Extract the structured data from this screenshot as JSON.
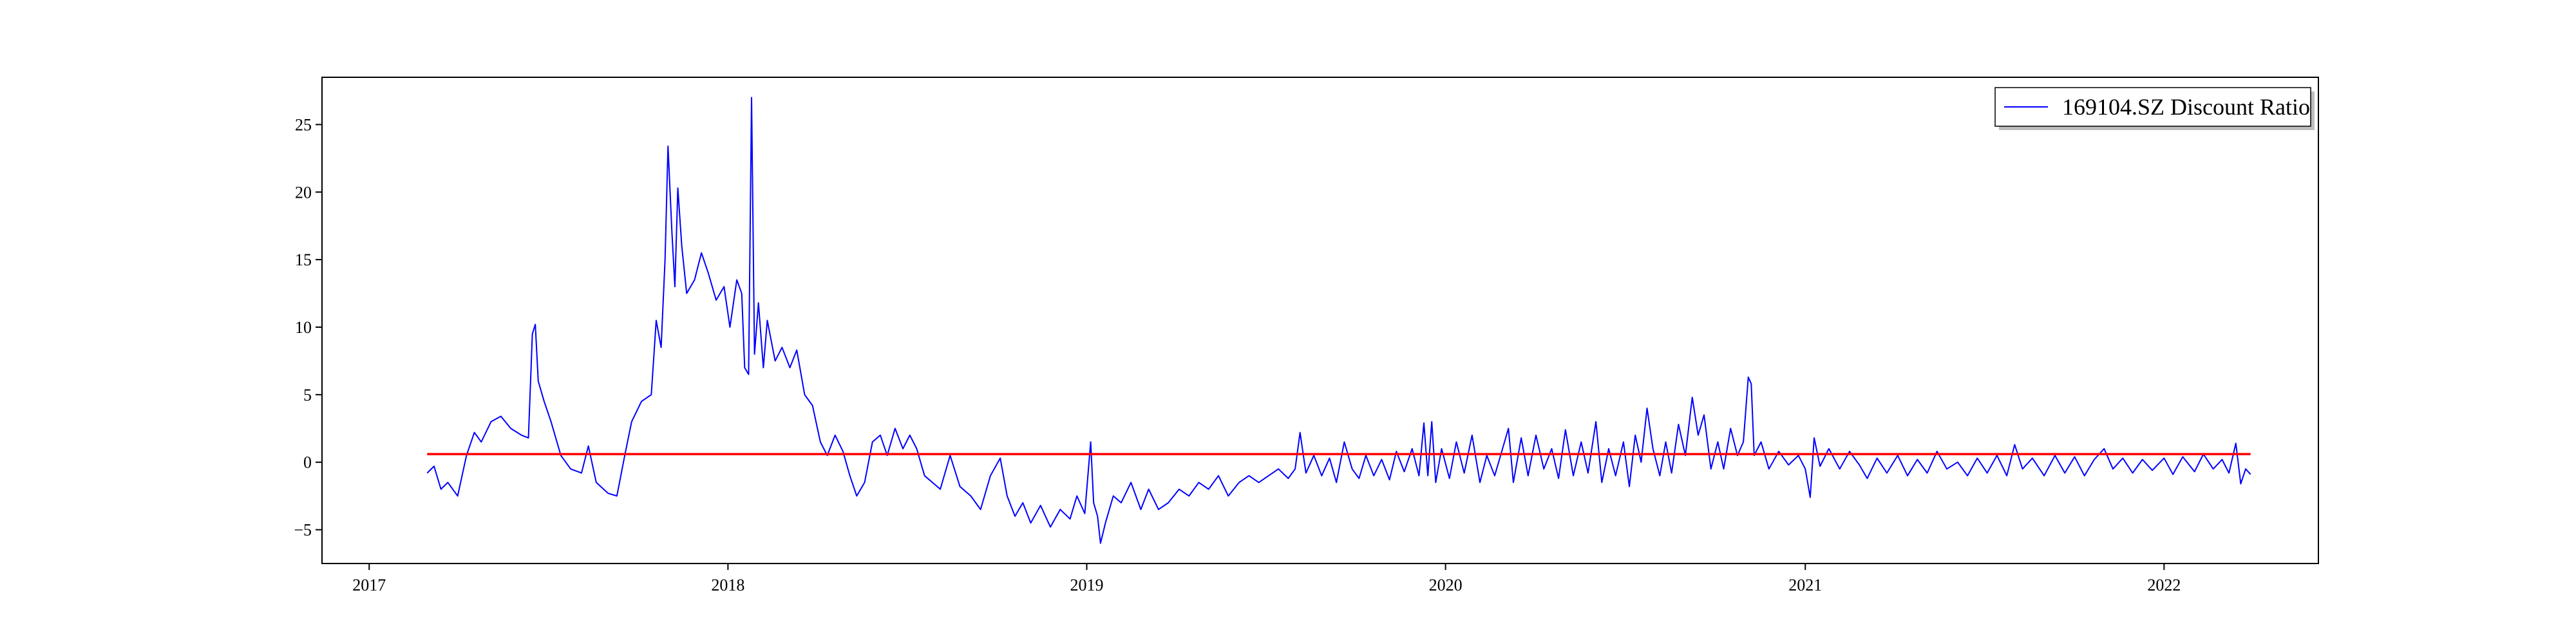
{
  "chart_data": {
    "type": "line",
    "title": "",
    "xlabel": "",
    "ylabel": "",
    "x_tick_labels": [
      "2017",
      "2018",
      "2019",
      "2020",
      "2021",
      "2022"
    ],
    "x_ticks": [
      "2017-01-01",
      "2018-01-01",
      "2019-01-01",
      "2020-01-01",
      "2021-01-01",
      "2022-01-01"
    ],
    "y_tick_labels": [
      "−5",
      "0",
      "5",
      "10",
      "15",
      "20",
      "25"
    ],
    "y_ticks": [
      -5,
      0,
      5,
      10,
      15,
      20,
      25
    ],
    "xlim": [
      "2016-11-14",
      "2022-06-07"
    ],
    "ylim": [
      -7.5,
      28.5
    ],
    "grid": false,
    "legend_position": "top-right",
    "series": [
      {
        "name": "169104.SZ Discount Ratio",
        "color": "#0000ff",
        "points": [
          [
            "2017-03-01",
            -0.8
          ],
          [
            "2017-03-08",
            -0.3
          ],
          [
            "2017-03-15",
            -2.0
          ],
          [
            "2017-03-22",
            -1.5
          ],
          [
            "2017-04-01",
            -2.5
          ],
          [
            "2017-04-10",
            0.5
          ],
          [
            "2017-04-18",
            2.2
          ],
          [
            "2017-04-25",
            1.5
          ],
          [
            "2017-05-05",
            3.0
          ],
          [
            "2017-05-15",
            3.4
          ],
          [
            "2017-05-25",
            2.5
          ],
          [
            "2017-06-05",
            2.0
          ],
          [
            "2017-06-12",
            1.8
          ],
          [
            "2017-06-16",
            9.5
          ],
          [
            "2017-06-19",
            10.2
          ],
          [
            "2017-06-22",
            6.0
          ],
          [
            "2017-06-28",
            4.5
          ],
          [
            "2017-07-05",
            3.0
          ],
          [
            "2017-07-15",
            0.5
          ],
          [
            "2017-07-25",
            -0.5
          ],
          [
            "2017-08-05",
            -0.8
          ],
          [
            "2017-08-12",
            1.2
          ],
          [
            "2017-08-20",
            -1.5
          ],
          [
            "2017-09-01",
            -2.3
          ],
          [
            "2017-09-10",
            -2.5
          ],
          [
            "2017-09-18",
            0.5
          ],
          [
            "2017-09-25",
            3.0
          ],
          [
            "2017-10-05",
            4.5
          ],
          [
            "2017-10-15",
            5.0
          ],
          [
            "2017-10-20",
            10.5
          ],
          [
            "2017-10-25",
            8.5
          ],
          [
            "2017-10-29",
            15.0
          ],
          [
            "2017-11-01",
            23.4
          ],
          [
            "2017-11-05",
            17.0
          ],
          [
            "2017-11-08",
            13.0
          ],
          [
            "2017-11-11",
            20.3
          ],
          [
            "2017-11-15",
            16.0
          ],
          [
            "2017-11-20",
            12.5
          ],
          [
            "2017-11-28",
            13.5
          ],
          [
            "2017-12-05",
            15.5
          ],
          [
            "2017-12-12",
            14.0
          ],
          [
            "2017-12-20",
            12.0
          ],
          [
            "2017-12-28",
            13.0
          ],
          [
            "2018-01-03",
            10.0
          ],
          [
            "2018-01-10",
            13.5
          ],
          [
            "2018-01-15",
            12.5
          ],
          [
            "2018-01-18",
            7.0
          ],
          [
            "2018-01-22",
            6.5
          ],
          [
            "2018-01-25",
            27.0
          ],
          [
            "2018-01-28",
            8.0
          ],
          [
            "2018-02-01",
            11.8
          ],
          [
            "2018-02-06",
            7.0
          ],
          [
            "2018-02-10",
            10.5
          ],
          [
            "2018-02-18",
            7.5
          ],
          [
            "2018-02-25",
            8.5
          ],
          [
            "2018-03-05",
            7.0
          ],
          [
            "2018-03-12",
            8.3
          ],
          [
            "2018-03-20",
            5.0
          ],
          [
            "2018-03-28",
            4.2
          ],
          [
            "2018-04-05",
            1.5
          ],
          [
            "2018-04-12",
            0.5
          ],
          [
            "2018-04-20",
            2.0
          ],
          [
            "2018-04-28",
            0.8
          ],
          [
            "2018-05-05",
            -1.0
          ],
          [
            "2018-05-12",
            -2.5
          ],
          [
            "2018-05-20",
            -1.5
          ],
          [
            "2018-05-28",
            1.5
          ],
          [
            "2018-06-05",
            2.0
          ],
          [
            "2018-06-12",
            0.5
          ],
          [
            "2018-06-20",
            2.5
          ],
          [
            "2018-06-28",
            1.0
          ],
          [
            "2018-07-05",
            2.0
          ],
          [
            "2018-07-12",
            1.0
          ],
          [
            "2018-07-20",
            -1.0
          ],
          [
            "2018-07-28",
            -1.5
          ],
          [
            "2018-08-05",
            -2.0
          ],
          [
            "2018-08-15",
            0.5
          ],
          [
            "2018-08-25",
            -1.8
          ],
          [
            "2018-09-05",
            -2.5
          ],
          [
            "2018-09-15",
            -3.5
          ],
          [
            "2018-09-25",
            -1.0
          ],
          [
            "2018-10-05",
            0.3
          ],
          [
            "2018-10-12",
            -2.5
          ],
          [
            "2018-10-20",
            -4.0
          ],
          [
            "2018-10-28",
            -3.0
          ],
          [
            "2018-11-05",
            -4.5
          ],
          [
            "2018-11-15",
            -3.2
          ],
          [
            "2018-11-25",
            -4.8
          ],
          [
            "2018-12-05",
            -3.5
          ],
          [
            "2018-12-15",
            -4.2
          ],
          [
            "2018-12-22",
            -2.5
          ],
          [
            "2018-12-30",
            -3.8
          ],
          [
            "2019-01-05",
            1.5
          ],
          [
            "2019-01-08",
            -3.0
          ],
          [
            "2019-01-12",
            -4.0
          ],
          [
            "2019-01-15",
            -6.0
          ],
          [
            "2019-01-20",
            -4.5
          ],
          [
            "2019-01-28",
            -2.5
          ],
          [
            "2019-02-05",
            -3.0
          ],
          [
            "2019-02-15",
            -1.5
          ],
          [
            "2019-02-25",
            -3.5
          ],
          [
            "2019-03-05",
            -2.0
          ],
          [
            "2019-03-15",
            -3.5
          ],
          [
            "2019-03-25",
            -3.0
          ],
          [
            "2019-04-05",
            -2.0
          ],
          [
            "2019-04-15",
            -2.5
          ],
          [
            "2019-04-25",
            -1.5
          ],
          [
            "2019-05-05",
            -2.0
          ],
          [
            "2019-05-15",
            -1.0
          ],
          [
            "2019-05-25",
            -2.5
          ],
          [
            "2019-06-05",
            -1.5
          ],
          [
            "2019-06-15",
            -1.0
          ],
          [
            "2019-06-25",
            -1.5
          ],
          [
            "2019-07-05",
            -1.0
          ],
          [
            "2019-07-15",
            -0.5
          ],
          [
            "2019-07-25",
            -1.2
          ],
          [
            "2019-08-01",
            -0.5
          ],
          [
            "2019-08-06",
            2.2
          ],
          [
            "2019-08-12",
            -0.8
          ],
          [
            "2019-08-20",
            0.5
          ],
          [
            "2019-08-28",
            -1.0
          ],
          [
            "2019-09-05",
            0.3
          ],
          [
            "2019-09-12",
            -1.5
          ],
          [
            "2019-09-20",
            1.5
          ],
          [
            "2019-09-28",
            -0.5
          ],
          [
            "2019-10-05",
            -1.2
          ],
          [
            "2019-10-12",
            0.5
          ],
          [
            "2019-10-20",
            -1.0
          ],
          [
            "2019-10-28",
            0.2
          ],
          [
            "2019-11-05",
            -1.3
          ],
          [
            "2019-11-12",
            0.8
          ],
          [
            "2019-11-20",
            -0.7
          ],
          [
            "2019-11-28",
            1.0
          ],
          [
            "2019-12-05",
            -1.0
          ],
          [
            "2019-12-10",
            2.9
          ],
          [
            "2019-12-14",
            -1.0
          ],
          [
            "2019-12-18",
            3.0
          ],
          [
            "2019-12-22",
            -1.5
          ],
          [
            "2019-12-28",
            1.0
          ],
          [
            "2020-01-05",
            -1.2
          ],
          [
            "2020-01-12",
            1.5
          ],
          [
            "2020-01-20",
            -0.8
          ],
          [
            "2020-01-28",
            2.0
          ],
          [
            "2020-02-05",
            -1.5
          ],
          [
            "2020-02-12",
            0.5
          ],
          [
            "2020-02-20",
            -1.0
          ],
          [
            "2020-02-28",
            1.0
          ],
          [
            "2020-03-05",
            2.5
          ],
          [
            "2020-03-10",
            -1.5
          ],
          [
            "2020-03-18",
            1.8
          ],
          [
            "2020-03-25",
            -1.0
          ],
          [
            "2020-04-02",
            2.0
          ],
          [
            "2020-04-10",
            -0.5
          ],
          [
            "2020-04-18",
            1.0
          ],
          [
            "2020-04-25",
            -1.2
          ],
          [
            "2020-05-02",
            2.4
          ],
          [
            "2020-05-10",
            -1.0
          ],
          [
            "2020-05-18",
            1.5
          ],
          [
            "2020-05-25",
            -0.8
          ],
          [
            "2020-06-02",
            3.0
          ],
          [
            "2020-06-08",
            -1.5
          ],
          [
            "2020-06-15",
            1.0
          ],
          [
            "2020-06-22",
            -1.0
          ],
          [
            "2020-06-30",
            1.5
          ],
          [
            "2020-07-06",
            -1.8
          ],
          [
            "2020-07-12",
            2.0
          ],
          [
            "2020-07-18",
            0.0
          ],
          [
            "2020-07-24",
            4.0
          ],
          [
            "2020-07-30",
            1.0
          ],
          [
            "2020-08-06",
            -1.0
          ],
          [
            "2020-08-12",
            1.5
          ],
          [
            "2020-08-18",
            -0.8
          ],
          [
            "2020-08-25",
            2.8
          ],
          [
            "2020-09-01",
            0.5
          ],
          [
            "2020-09-08",
            4.8
          ],
          [
            "2020-09-14",
            2.0
          ],
          [
            "2020-09-20",
            3.5
          ],
          [
            "2020-09-27",
            -0.5
          ],
          [
            "2020-10-04",
            1.5
          ],
          [
            "2020-10-10",
            -0.5
          ],
          [
            "2020-10-17",
            2.5
          ],
          [
            "2020-10-24",
            0.5
          ],
          [
            "2020-10-30",
            1.5
          ],
          [
            "2020-11-04",
            6.3
          ],
          [
            "2020-11-07",
            5.8
          ],
          [
            "2020-11-10",
            0.5
          ],
          [
            "2020-11-17",
            1.5
          ],
          [
            "2020-11-25",
            -0.5
          ],
          [
            "2020-12-05",
            0.8
          ],
          [
            "2020-12-15",
            -0.2
          ],
          [
            "2020-12-25",
            0.5
          ],
          [
            "2021-01-01",
            -0.5
          ],
          [
            "2021-01-06",
            -2.6
          ],
          [
            "2021-01-10",
            1.8
          ],
          [
            "2021-01-16",
            -0.3
          ],
          [
            "2021-01-25",
            1.0
          ],
          [
            "2021-02-05",
            -0.5
          ],
          [
            "2021-02-15",
            0.8
          ],
          [
            "2021-02-25",
            -0.2
          ],
          [
            "2021-03-05",
            -1.2
          ],
          [
            "2021-03-15",
            0.3
          ],
          [
            "2021-03-25",
            -0.8
          ],
          [
            "2021-04-05",
            0.5
          ],
          [
            "2021-04-15",
            -1.0
          ],
          [
            "2021-04-25",
            0.2
          ],
          [
            "2021-05-05",
            -0.8
          ],
          [
            "2021-05-15",
            0.8
          ],
          [
            "2021-05-25",
            -0.5
          ],
          [
            "2021-06-05",
            0.0
          ],
          [
            "2021-06-15",
            -1.0
          ],
          [
            "2021-06-25",
            0.3
          ],
          [
            "2021-07-05",
            -0.8
          ],
          [
            "2021-07-15",
            0.5
          ],
          [
            "2021-07-25",
            -1.0
          ],
          [
            "2021-08-02",
            1.3
          ],
          [
            "2021-08-10",
            -0.5
          ],
          [
            "2021-08-20",
            0.3
          ],
          [
            "2021-09-01",
            -1.0
          ],
          [
            "2021-09-12",
            0.5
          ],
          [
            "2021-09-22",
            -0.8
          ],
          [
            "2021-10-02",
            0.4
          ],
          [
            "2021-10-12",
            -1.0
          ],
          [
            "2021-10-22",
            0.2
          ],
          [
            "2021-11-01",
            1.0
          ],
          [
            "2021-11-10",
            -0.5
          ],
          [
            "2021-11-20",
            0.3
          ],
          [
            "2021-11-30",
            -0.8
          ],
          [
            "2021-12-10",
            0.2
          ],
          [
            "2021-12-20",
            -0.6
          ],
          [
            "2022-01-01",
            0.3
          ],
          [
            "2022-01-10",
            -0.9
          ],
          [
            "2022-01-20",
            0.4
          ],
          [
            "2022-02-01",
            -0.7
          ],
          [
            "2022-02-10",
            0.6
          ],
          [
            "2022-02-20",
            -0.5
          ],
          [
            "2022-03-01",
            0.2
          ],
          [
            "2022-03-08",
            -0.8
          ],
          [
            "2022-03-15",
            1.4
          ],
          [
            "2022-03-20",
            -1.6
          ],
          [
            "2022-03-25",
            -0.5
          ],
          [
            "2022-03-30",
            -0.9
          ]
        ]
      }
    ],
    "reference_line": {
      "color": "#ff0000",
      "y": 0.6,
      "x": [
        "2017-03-01",
        "2022-03-30"
      ]
    }
  }
}
